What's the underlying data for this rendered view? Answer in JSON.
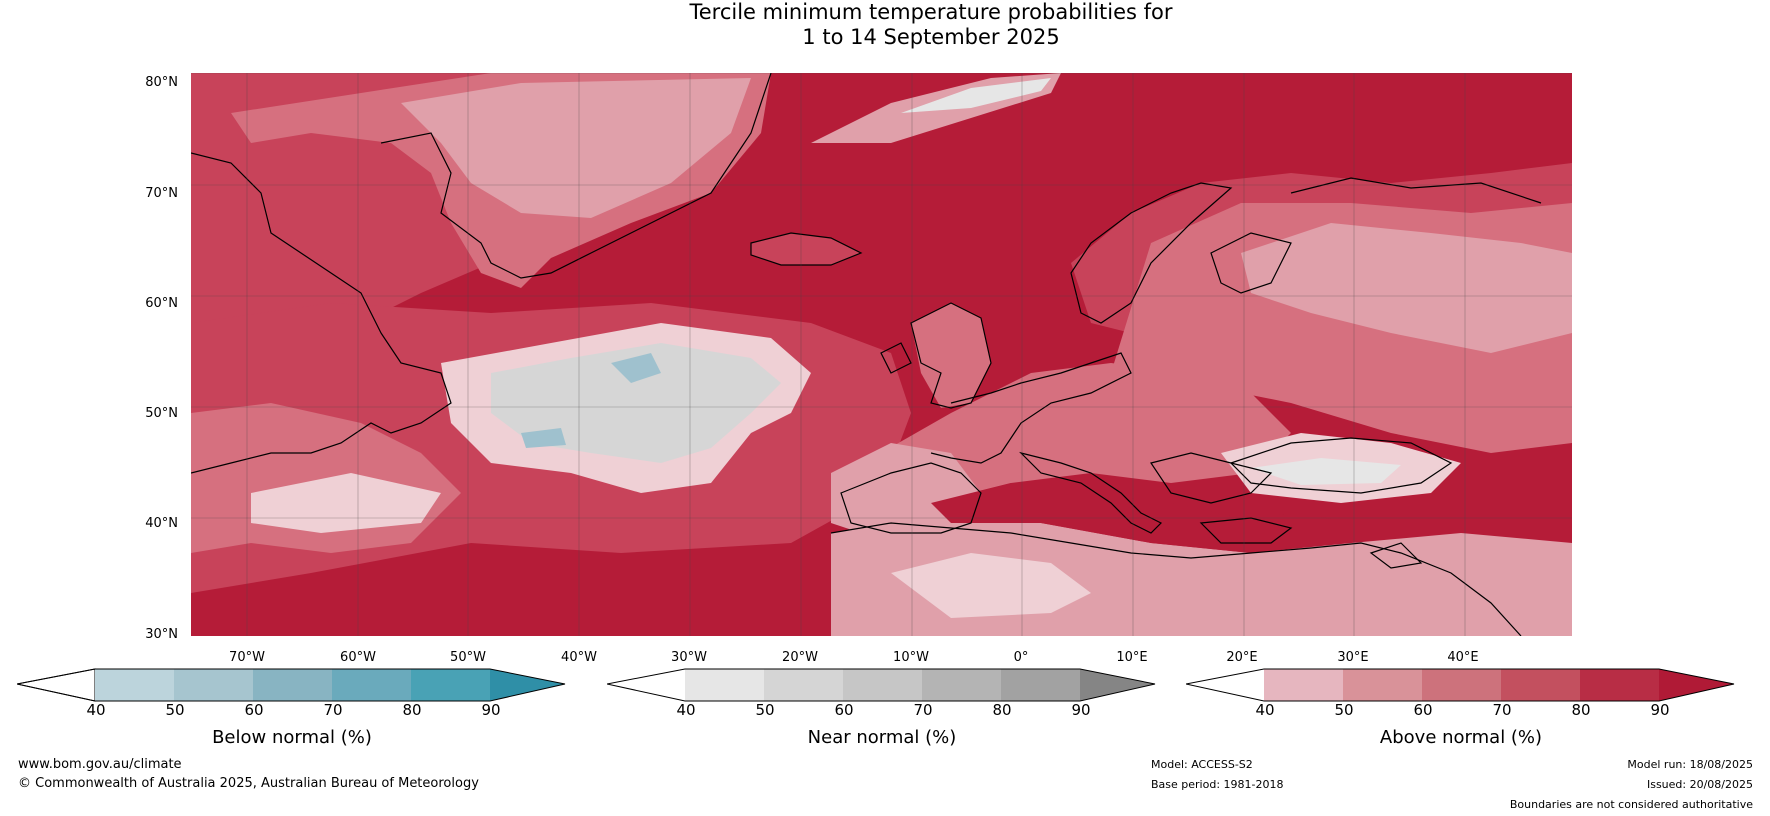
{
  "title": {
    "line1": "Tercile minimum temperature probabilities for",
    "line2": "1 to 14 September 2025"
  },
  "map": {
    "lat_labels": [
      "80°N",
      "70°N",
      "60°N",
      "50°N",
      "40°N",
      "30°N"
    ],
    "lon_labels": [
      "70°W",
      "60°W",
      "50°W",
      "40°W",
      "30°W",
      "20°W",
      "10°W",
      "0°",
      "10°E",
      "20°E",
      "30°E",
      "40°E"
    ],
    "colors": {
      "ocean_dark": "#b51c38",
      "above_70": "#c8435a",
      "above_60": "#d6707f",
      "above_50": "#e0a0aa",
      "above_40": "#efd0d5",
      "near": "#d6d6d6",
      "below": "#9fc1ce"
    }
  },
  "colorbars": {
    "below": {
      "title": "Below normal (%)",
      "ticks": [
        "40",
        "50",
        "60",
        "70",
        "80",
        "90"
      ],
      "colors": [
        "#bcd4dc",
        "#a6c5cf",
        "#88b4c2",
        "#6aaabc",
        "#49a2b5",
        "#2f8fa7"
      ]
    },
    "near": {
      "title": "Near normal (%)",
      "ticks": [
        "40",
        "50",
        "60",
        "70",
        "80",
        "90"
      ],
      "colors": [
        "#e6e6e6",
        "#d5d5d5",
        "#c6c6c6",
        "#b4b4b4",
        "#a2a2a2",
        "#858585"
      ]
    },
    "above": {
      "title": "Above normal (%)",
      "ticks": [
        "40",
        "50",
        "60",
        "70",
        "80",
        "90"
      ],
      "colors": [
        "#e6b6bf",
        "#d99299",
        "#cd727c",
        "#c3505f",
        "#b82d45",
        "#b01a36"
      ]
    }
  },
  "footer": {
    "website": "www.bom.gov.au/climate",
    "copyright": "© Commonwealth of Australia 2025, Australian Bureau of Meteorology",
    "model": "Model: ACCESS-S2",
    "base_period": "Base period: 1981-2018",
    "model_run": "Model run: 18/08/2025",
    "issued": "Issued: 20/08/2025",
    "disclaimer": "Boundaries are not considered authoritative"
  }
}
